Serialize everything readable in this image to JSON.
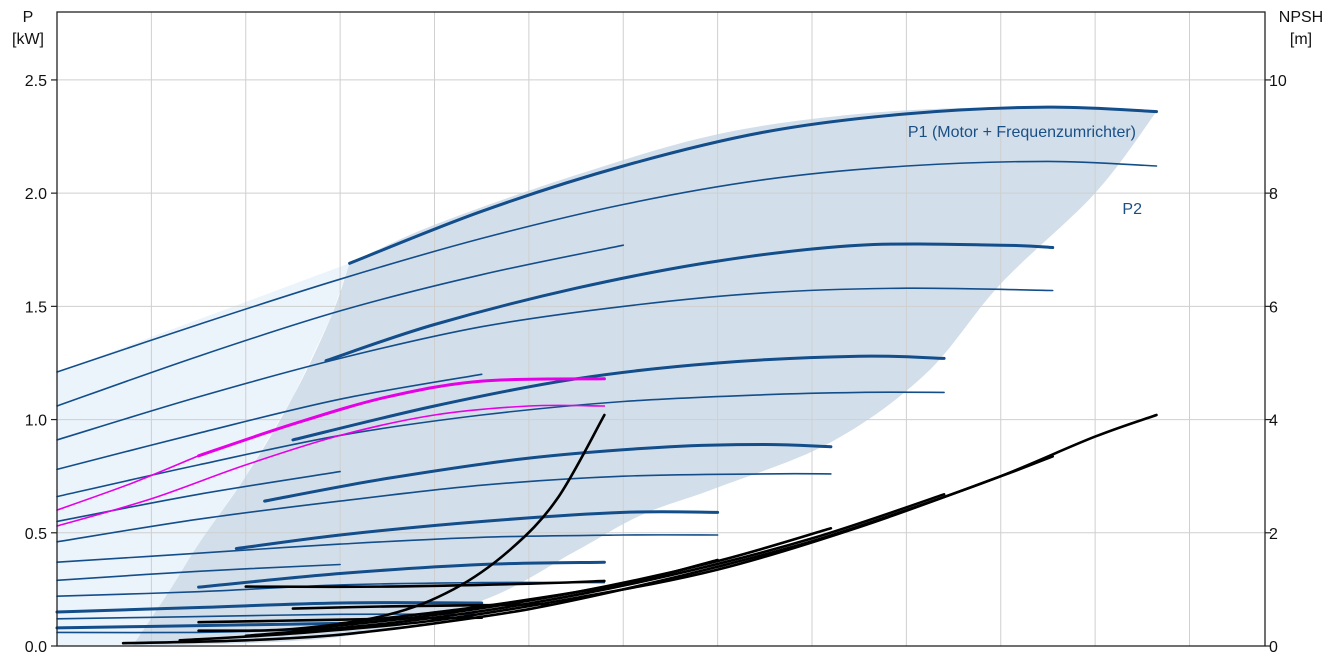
{
  "chart_data": {
    "type": "line",
    "title": "",
    "left_axis": {
      "label_line1": "P",
      "label_line2": "[kW]",
      "ylim": [
        0,
        2.8
      ],
      "ticks": [
        "0.0",
        "0.5",
        "1.0",
        "1.5",
        "2.0",
        "2.5"
      ],
      "tick_values": [
        0,
        0.5,
        1.0,
        1.5,
        2.0,
        2.5
      ]
    },
    "right_axis": {
      "label_line1": "NPSH",
      "label_line2": "[m]",
      "ylim": [
        0,
        11.2
      ],
      "ticks": [
        "0",
        "2",
        "4",
        "6",
        "8",
        "10"
      ],
      "tick_values": [
        0,
        2,
        4,
        6,
        8,
        10
      ]
    },
    "xlim": [
      0,
      12.8
    ],
    "x_gridlines": [
      0,
      1,
      2,
      3,
      4,
      5,
      6,
      7,
      8,
      9,
      10,
      11,
      12
    ],
    "grid": true,
    "annotations": [
      {
        "text": "P1 (Motor + Frequenzumrichter)",
        "x": 11.3,
        "y": 2.43
      },
      {
        "text": "P2",
        "x": 11.2,
        "y": 2.05
      }
    ],
    "colors": {
      "power": "#134e8a",
      "highlight": "#e500e5",
      "npsh": "#000000",
      "region_main": "#d2dfeb",
      "region_light": "#ebf3fb",
      "grid": "#cfcfcf"
    },
    "operating_region": {
      "upper": [
        [
          3.1,
          1.69
        ],
        [
          4.0,
          1.86
        ],
        [
          5.5,
          2.08
        ],
        [
          7.0,
          2.26
        ],
        [
          8.5,
          2.35
        ],
        [
          10.0,
          2.38
        ],
        [
          11.5,
          2.37
        ],
        [
          11.65,
          2.36
        ]
      ],
      "lower": [
        [
          11.65,
          2.36
        ],
        [
          11.0,
          2.0
        ],
        [
          10.0,
          1.6
        ],
        [
          9.2,
          1.2
        ],
        [
          8.2,
          0.9
        ],
        [
          7.0,
          0.7
        ],
        [
          6.2,
          0.58
        ],
        [
          5.5,
          0.42
        ],
        [
          4.5,
          0.2
        ],
        [
          3.0,
          0.04
        ],
        [
          0.8,
          0.0
        ]
      ],
      "left_edge": [
        [
          0.8,
          0.0
        ],
        [
          1.2,
          0.25
        ],
        [
          1.5,
          0.45
        ],
        [
          2.0,
          0.75
        ],
        [
          2.5,
          1.1
        ],
        [
          2.9,
          1.45
        ],
        [
          3.1,
          1.69
        ]
      ]
    },
    "light_region": [
      [
        0,
        1.21
      ],
      [
        3.1,
        1.69
      ],
      [
        2.9,
        1.45
      ],
      [
        2.5,
        1.1
      ],
      [
        2.0,
        0.75
      ],
      [
        1.5,
        0.45
      ],
      [
        1.2,
        0.25
      ],
      [
        0.8,
        0.0
      ],
      [
        0,
        0
      ]
    ],
    "series": [
      {
        "label": "P1",
        "group": "power",
        "bold": true,
        "x": [
          3.1,
          4.5,
          6.0,
          7.5,
          9.0,
          10.5,
          11.65
        ],
        "y": [
          1.69,
          1.92,
          2.12,
          2.27,
          2.35,
          2.38,
          2.36
        ]
      },
      {
        "label": "P2",
        "group": "power",
        "bold": false,
        "x": [
          0,
          1.5,
          3.0,
          4.5,
          6.0,
          7.5,
          9.0,
          10.5,
          11.65
        ],
        "y": [
          1.21,
          1.42,
          1.62,
          1.8,
          1.95,
          2.06,
          2.12,
          2.14,
          2.12
        ]
      },
      {
        "group": "power",
        "bold": false,
        "x": [
          0,
          1.5,
          3.0,
          4.5,
          6.0
        ],
        "y": [
          1.06,
          1.28,
          1.48,
          1.64,
          1.77
        ]
      },
      {
        "group": "power",
        "bold": true,
        "x": [
          2.85,
          4.0,
          5.5,
          7.0,
          8.5,
          10.0,
          10.55
        ],
        "y": [
          1.26,
          1.42,
          1.58,
          1.7,
          1.77,
          1.77,
          1.76
        ]
      },
      {
        "group": "power",
        "bold": false,
        "x": [
          0,
          1.5,
          3.0,
          4.5,
          6.0,
          7.5,
          9.0,
          10.55
        ],
        "y": [
          0.91,
          1.1,
          1.27,
          1.41,
          1.5,
          1.56,
          1.58,
          1.57
        ]
      },
      {
        "group": "power",
        "bold": false,
        "x": [
          0,
          1.5,
          3.0,
          4.5
        ],
        "y": [
          0.78,
          0.94,
          1.09,
          1.2
        ]
      },
      {
        "group": "power",
        "bold": true,
        "x": [
          2.5,
          4.0,
          5.5,
          7.0,
          8.5,
          9.4
        ],
        "y": [
          0.91,
          1.06,
          1.18,
          1.25,
          1.28,
          1.27
        ]
      },
      {
        "group": "power",
        "bold": false,
        "x": [
          0,
          1.5,
          3.0,
          4.5,
          6.0,
          7.5,
          8.5,
          9.4
        ],
        "y": [
          0.66,
          0.8,
          0.93,
          1.02,
          1.08,
          1.11,
          1.12,
          1.12
        ]
      },
      {
        "group": "power",
        "bold": false,
        "x": [
          0,
          1.5,
          3.0
        ],
        "y": [
          0.55,
          0.67,
          0.77
        ]
      },
      {
        "group": "power",
        "bold": true,
        "x": [
          2.2,
          3.5,
          5.0,
          6.5,
          7.5,
          8.2
        ],
        "y": [
          0.64,
          0.74,
          0.83,
          0.88,
          0.89,
          0.88
        ]
      },
      {
        "group": "power",
        "bold": false,
        "x": [
          0,
          1.5,
          3.0,
          4.5,
          6.0,
          7.5,
          8.2
        ],
        "y": [
          0.46,
          0.56,
          0.64,
          0.71,
          0.75,
          0.76,
          0.76
        ]
      },
      {
        "group": "power",
        "bold": true,
        "x": [
          1.9,
          3.0,
          4.5,
          6.0,
          7.0
        ],
        "y": [
          0.43,
          0.49,
          0.55,
          0.59,
          0.59
        ]
      },
      {
        "group": "power",
        "bold": false,
        "x": [
          0,
          1.5,
          3.0,
          4.5,
          6.0,
          7.0
        ],
        "y": [
          0.37,
          0.41,
          0.45,
          0.48,
          0.49,
          0.49
        ]
      },
      {
        "group": "power",
        "bold": false,
        "x": [
          0,
          1.5,
          3.0
        ],
        "y": [
          0.29,
          0.33,
          0.36
        ]
      },
      {
        "group": "power",
        "bold": true,
        "x": [
          1.5,
          3.0,
          4.5,
          5.8
        ],
        "y": [
          0.26,
          0.32,
          0.36,
          0.37
        ]
      },
      {
        "group": "power",
        "bold": false,
        "x": [
          0,
          1.5,
          3.0,
          4.5,
          5.8
        ],
        "y": [
          0.22,
          0.24,
          0.27,
          0.28,
          0.28
        ]
      },
      {
        "group": "power",
        "bold": true,
        "x": [
          0,
          1.5,
          3.0,
          4.5
        ],
        "y": [
          0.15,
          0.17,
          0.19,
          0.19
        ]
      },
      {
        "group": "power",
        "bold": false,
        "x": [
          0,
          1.5,
          3.0,
          4.5
        ],
        "y": [
          0.12,
          0.13,
          0.14,
          0.14
        ]
      },
      {
        "group": "power",
        "bold": true,
        "x": [
          0,
          1.5,
          3.0
        ],
        "y": [
          0.08,
          0.09,
          0.1
        ]
      },
      {
        "group": "power",
        "bold": false,
        "x": [
          0,
          1.5,
          2.5
        ],
        "y": [
          0.06,
          0.06,
          0.07
        ]
      },
      {
        "group": "highlight",
        "bold": true,
        "x": [
          1.5,
          2.5,
          3.5,
          4.5,
          5.8
        ],
        "y": [
          0.84,
          0.98,
          1.1,
          1.17,
          1.18
        ]
      },
      {
        "group": "highlight",
        "bold": false,
        "x": [
          0,
          1.0,
          2.0,
          3.0,
          4.0,
          5.0,
          5.8
        ],
        "y": [
          0.53,
          0.65,
          0.8,
          0.93,
          1.02,
          1.06,
          1.06
        ]
      },
      {
        "group": "highlight",
        "bold": false,
        "x": [
          0,
          0.8,
          1.5
        ],
        "y": [
          0.6,
          0.72,
          0.84
        ]
      },
      {
        "group": "npsh",
        "axis": "right",
        "x": [
          1.5,
          2.5,
          3.5,
          4.2,
          4.8,
          5.3,
          5.8
        ],
        "y": [
          0.27,
          0.3,
          0.55,
          1.0,
          1.7,
          2.6,
          4.08
        ]
      },
      {
        "group": "npsh",
        "axis": "right",
        "x": [
          0.7,
          2.0,
          3.0,
          4.0,
          5.0,
          6.0,
          7.0,
          8.0,
          9.0,
          10.0,
          11.0,
          11.65
        ],
        "y": [
          0.05,
          0.1,
          0.2,
          0.4,
          0.65,
          1.0,
          1.4,
          1.85,
          2.4,
          3.0,
          3.7,
          4.08
        ]
      },
      {
        "group": "npsh",
        "axis": "right",
        "x": [
          1.3,
          2.5,
          4.0,
          5.5,
          7.0,
          8.5,
          10.0,
          10.55
        ],
        "y": [
          0.1,
          0.22,
          0.45,
          0.85,
          1.35,
          2.1,
          3.0,
          3.35
        ]
      },
      {
        "group": "npsh",
        "axis": "right",
        "x": [
          2.0,
          3.5,
          5.0,
          6.5,
          8.0,
          9.4
        ],
        "y": [
          0.18,
          0.4,
          0.75,
          1.25,
          1.9,
          2.68
        ]
      },
      {
        "group": "npsh",
        "axis": "right",
        "x": [
          2.5,
          4.0,
          5.5,
          7.0,
          8.2
        ],
        "y": [
          0.28,
          0.55,
          0.95,
          1.5,
          2.08
        ]
      },
      {
        "group": "npsh",
        "axis": "right",
        "x": [
          3.0,
          4.5,
          6.0,
          7.0
        ],
        "y": [
          0.4,
          0.7,
          1.1,
          1.52
        ]
      },
      {
        "group": "npsh",
        "axis": "right",
        "x": [
          2.0,
          3.5,
          5.0,
          5.8
        ],
        "y": [
          1.05,
          1.05,
          1.1,
          1.15
        ]
      },
      {
        "group": "npsh",
        "axis": "right",
        "x": [
          2.5,
          3.5,
          4.5,
          5.2
        ],
        "y": [
          0.66,
          0.7,
          0.72,
          0.74
        ]
      },
      {
        "group": "npsh",
        "axis": "right",
        "x": [
          1.5,
          2.5,
          3.5,
          4.5
        ],
        "y": [
          0.42,
          0.45,
          0.48,
          0.5
        ]
      }
    ]
  }
}
